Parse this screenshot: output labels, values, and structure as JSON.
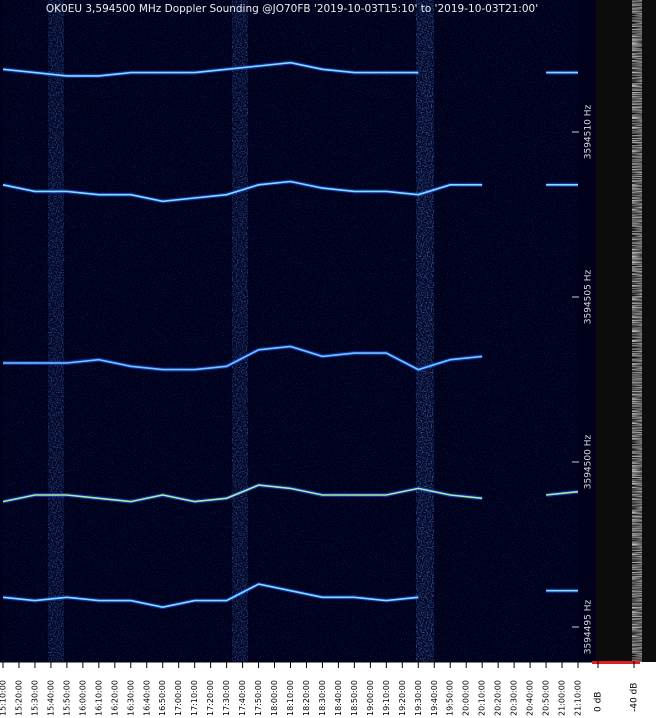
{
  "chart_data": {
    "type": "spectrogram",
    "title": "OK0EU 3,594500 MHz Doppler Sounding @JO70FB '2019-10-03T15:10' to '2019-10-03T21:00'",
    "xticks": [
      "15:10:00",
      "15:20:00",
      "15:30:00",
      "15:40:00",
      "15:50:00",
      "16:00:00",
      "16:10:00",
      "16:20:00",
      "16:30:00",
      "16:40:00",
      "16:50:00",
      "17:00:00",
      "17:10:00",
      "17:20:00",
      "17:30:00",
      "17:40:00",
      "17:50:00",
      "18:00:00",
      "18:10:00",
      "18:20:00",
      "18:30:00",
      "18:40:00",
      "18:50:00",
      "19:00:00",
      "19:10:00",
      "19:20:00",
      "19:30:00",
      "19:40:00",
      "19:50:00",
      "20:00:00",
      "20:10:00",
      "20:20:00",
      "20:30:00",
      "20:40:00",
      "20:50:00",
      "21:00:00",
      "21:10:00"
    ],
    "x": [
      "15:10:00",
      "15:30:00",
      "15:50:00",
      "16:10:00",
      "16:30:00",
      "16:50:00",
      "17:10:00",
      "17:30:00",
      "17:50:00",
      "18:10:00",
      "18:30:00",
      "18:50:00",
      "19:10:00",
      "19:30:00",
      "19:50:00",
      "20:10:00",
      "20:30:00",
      "20:50:00",
      "21:10:00"
    ],
    "ylim": [
      3594494,
      3594514
    ],
    "yticks": [
      {
        "value": 3594495,
        "label": "3594495 Hz"
      },
      {
        "value": 3594500,
        "label": "3594500 Hz"
      },
      {
        "value": 3594505,
        "label": "3594505 Hz"
      },
      {
        "value": 3594510,
        "label": "3594510 Hz"
      }
    ],
    "series": [
      {
        "color": "#7fe0ff",
        "values": [
          3594511.9,
          3594511.8,
          3594511.7,
          3594511.7,
          3594511.8,
          3594511.8,
          3594511.8,
          3594511.9,
          3594512.0,
          3594512.1,
          3594511.9,
          3594511.8,
          3594511.8,
          3594511.8,
          null,
          null,
          null,
          3594511.8,
          3594511.8
        ]
      },
      {
        "color": "#7fe0ff",
        "values": [
          3594508.4,
          3594508.2,
          3594508.2,
          3594508.1,
          3594508.1,
          3594507.9,
          3594508.0,
          3594508.1,
          3594508.4,
          3594508.5,
          3594508.3,
          3594508.2,
          3594508.2,
          3594508.1,
          3594508.4,
          3594508.4,
          null,
          3594508.4,
          3594508.4
        ]
      },
      {
        "color": "#6fc8ff",
        "values": [
          3594503.0,
          3594503.0,
          3594503.0,
          3594503.1,
          3594502.9,
          3594502.8,
          3594502.8,
          3594502.9,
          3594503.4,
          3594503.5,
          3594503.2,
          3594503.3,
          3594503.3,
          3594502.8,
          3594503.1,
          3594503.2,
          null,
          null,
          3594503.1
        ]
      },
      {
        "color": "#a8f0a0",
        "values": [
          3594498.8,
          3594499.0,
          3594499.0,
          3594498.9,
          3594498.8,
          3594499.0,
          3594498.8,
          3594498.9,
          3594499.3,
          3594499.2,
          3594499.0,
          3594499.0,
          3594499.0,
          3594499.2,
          3594499.0,
          3594498.9,
          null,
          3594499.0,
          3594499.1
        ]
      },
      {
        "color": "#7fe0ff",
        "values": [
          3594495.9,
          3594495.8,
          3594495.9,
          3594495.8,
          3594495.8,
          3594495.6,
          3594495.8,
          3594495.8,
          3594496.3,
          3594496.1,
          3594495.9,
          3594495.9,
          3594495.8,
          3594495.9,
          null,
          null,
          null,
          3594496.1,
          3594496.1
        ]
      }
    ],
    "colorbar_labels": [
      "0 dB",
      "-40 dB"
    ],
    "colorbar_color": "#e02020"
  }
}
